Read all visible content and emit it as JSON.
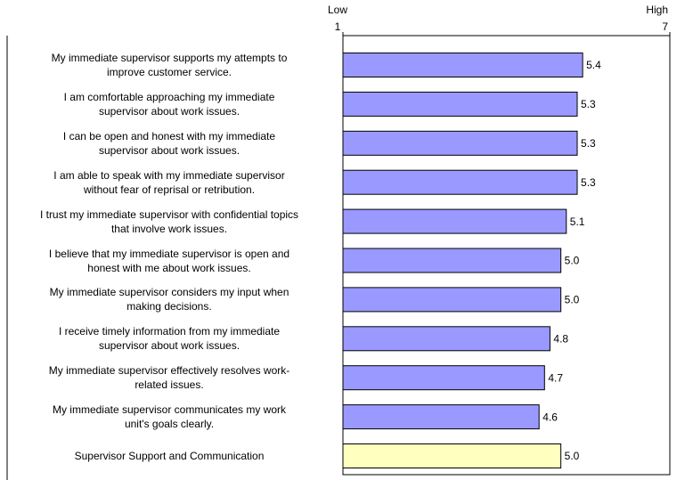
{
  "chart_data": {
    "type": "hbar",
    "categories": [
      "My immediate supervisor supports my attempts to\nimprove customer service.",
      "I am comfortable approaching my immediate\nsupervisor about work issues.",
      "I can be open and honest with my immediate\nsupervisor about work issues.",
      "I am able to speak with my immediate supervisor\nwithout fear of reprisal or retribution.",
      "I trust my immediate supervisor with confidential topics\nthat involve work issues.",
      "I believe that my immediate supervisor is open and\nhonest with me about work issues.",
      "My immediate supervisor considers my input when\nmaking decisions.",
      "I receive timely information from my immediate\nsupervisor about work issues.",
      "My immediate supervisor effectively resolves work-\nrelated issues.",
      "My immediate supervisor communicates my work\nunit's goals clearly.",
      "Supervisor Support and Communication"
    ],
    "values": [
      5.4,
      5.3,
      5.3,
      5.3,
      5.1,
      5,
      5,
      4.8,
      4.7,
      4.6,
      5
    ],
    "value_labels": [
      "5.4",
      "5.3",
      "5.3",
      "5.3",
      "5.1",
      "5.0",
      "5.0",
      "4.8",
      "4.7",
      "4.6",
      "5.0"
    ],
    "colors": [
      "#9999ff",
      "#9999ff",
      "#9999ff",
      "#9999ff",
      "#9999ff",
      "#9999ff",
      "#9999ff",
      "#9999ff",
      "#9999ff",
      "#9999ff",
      "#ffffc0"
    ],
    "xlim": [
      1,
      7
    ],
    "xticks": [
      1,
      7
    ],
    "axis_end_labels": [
      "Low",
      "High"
    ]
  }
}
